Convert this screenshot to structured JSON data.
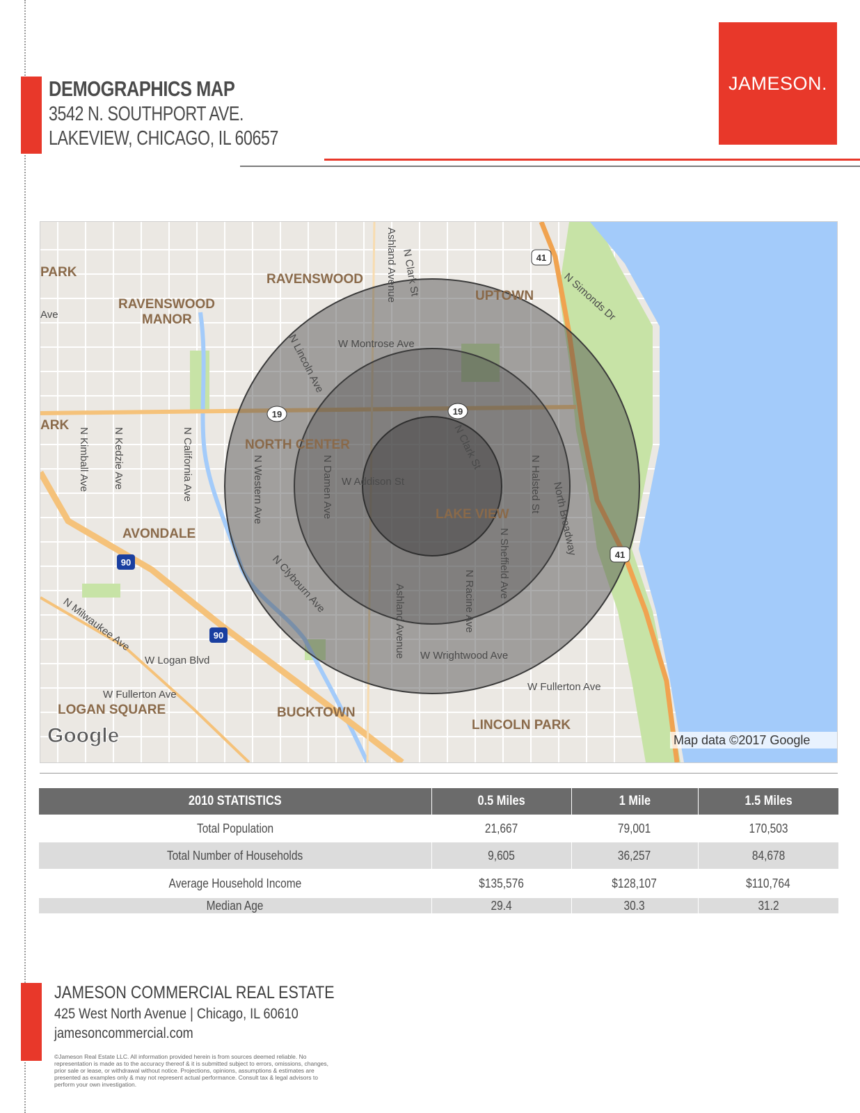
{
  "header": {
    "title": "DEMOGRAPHICS MAP",
    "address_line1": "3542 N. SOUTHPORT AVE.",
    "address_line2": "LAKEVIEW, CHICAGO, IL 60657"
  },
  "logo": {
    "text": "JAMESON."
  },
  "colors": {
    "brand_red": "#e8382a",
    "table_header": "#6b6b6b",
    "row_band": "#dcdcdc",
    "lake": "#a3cbfa"
  },
  "map": {
    "neighborhoods": [
      "PARK",
      "RAVENSWOOD",
      "RAVENSWOOD MANOR",
      "UPTOWN",
      "ARK",
      "NORTH CENTER",
      "LAKE VIEW",
      "AVONDALE",
      "LOGAN SQUARE",
      "BUCKTOWN",
      "LINCOLN PARK"
    ],
    "streets": [
      "Ave",
      "Ashland Avenue",
      "N Clark St",
      "N Simonds Dr",
      "W Montrose Ave",
      "N Lincoln Ave",
      "N Kimball Ave",
      "N Kedzie Ave",
      "N California Ave",
      "N Western Ave",
      "N Damen Ave",
      "W Addison St",
      "N Clark St",
      "N Halsted St",
      "North Broadway",
      "N Clybourn Ave",
      "Ashland Avenue",
      "N Racine Ave",
      "N Sheffield Ave",
      "W Wrightwood Ave",
      "N Milwaukee Ave",
      "W Logan Blvd",
      "W Fullerton Ave",
      "W Fullerton Ave"
    ],
    "shields": [
      "41",
      "19",
      "19",
      "90",
      "90",
      "41"
    ],
    "radii_miles": [
      0.5,
      1,
      1.5
    ],
    "google_logo": "Google",
    "attribution": "Map data ©2017 Google"
  },
  "stats": {
    "headers": [
      "2010 STATISTICS",
      "0.5 Miles",
      "1 Mile",
      "1.5 Miles"
    ],
    "rows": [
      {
        "label": "Total Population",
        "v1": "21,667",
        "v2": "79,001",
        "v3": "170,503"
      },
      {
        "label": "Total Number of Households",
        "v1": "9,605",
        "v2": "36,257",
        "v3": "84,678"
      },
      {
        "label": "Average Household Income",
        "v1": "$135,576",
        "v2": "$128,107",
        "v3": "$110,764"
      },
      {
        "label": "Median Age",
        "v1": "29.4",
        "v2": "30.3",
        "v3": "31.2"
      }
    ]
  },
  "footer": {
    "company": "JAMESON COMMERCIAL REAL ESTATE",
    "address": "425 West North Avenue | Chicago, IL 60610",
    "website": "jamesoncommercial.com",
    "legal": "©Jameson Real Estate LLC. All information provided herein is from sources deemed reliable. No representation is made as to the accuracy thereof & it is submitted subject to errors, omissions, changes, prior sale or lease, or withdrawal without notice. Projections, opinions, assumptions & estimates are presented as examples only & may not represent actual performance. Consult tax & legal advisors to perform your own investigation."
  }
}
